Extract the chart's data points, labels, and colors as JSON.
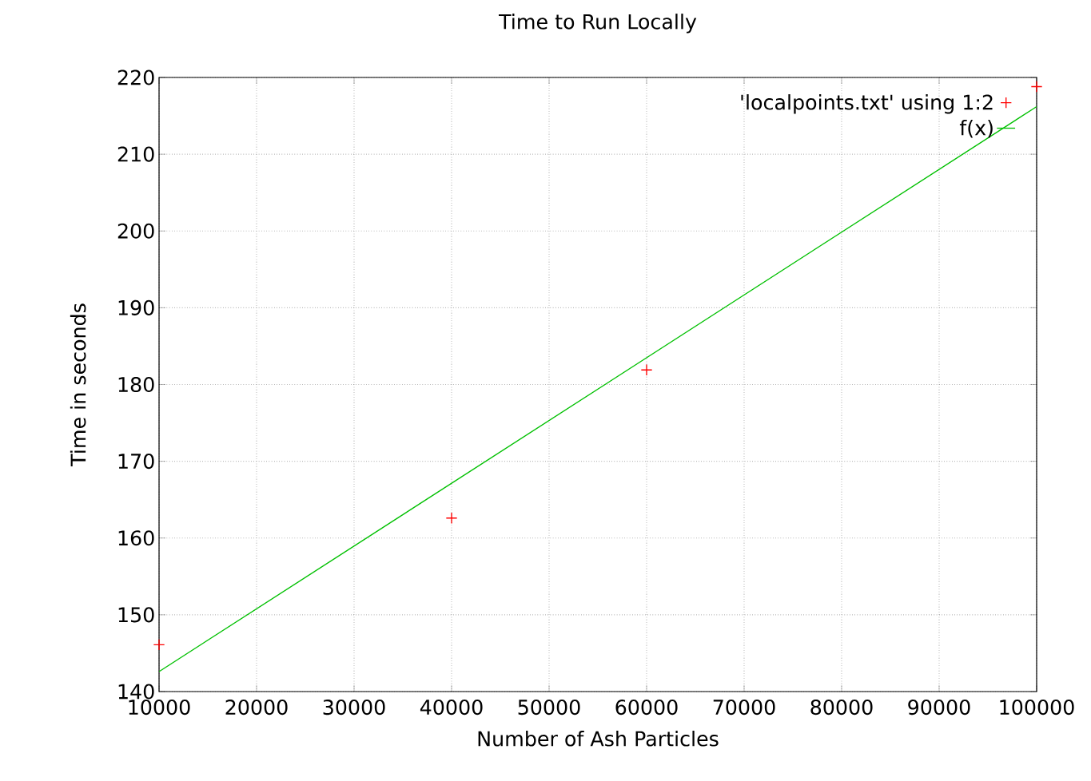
{
  "chart_data": {
    "type": "scatter",
    "title": "Time to Run Locally",
    "xlabel": "Number of Ash Particles",
    "ylabel": "Time in seconds",
    "xlim": [
      10000,
      100000
    ],
    "ylim": [
      140,
      220
    ],
    "xticks": [
      10000,
      20000,
      30000,
      40000,
      50000,
      60000,
      70000,
      80000,
      90000,
      100000
    ],
    "yticks": [
      140,
      150,
      160,
      170,
      180,
      190,
      200,
      210,
      220
    ],
    "grid": true,
    "legend": "top right",
    "series": [
      {
        "name": "'localpoints.txt' using 1:2",
        "marker": "cross",
        "color": "#ff0000",
        "x": [
          10000,
          40000,
          60000,
          100000
        ],
        "values": [
          146.1,
          162.6,
          181.9,
          218.8
        ]
      },
      {
        "name": "f(x)",
        "type": "line",
        "marker": "none",
        "line_style": "solid",
        "color": "#00c000",
        "x": [
          10000,
          100000
        ],
        "values": [
          142.6,
          216.2
        ]
      }
    ]
  }
}
